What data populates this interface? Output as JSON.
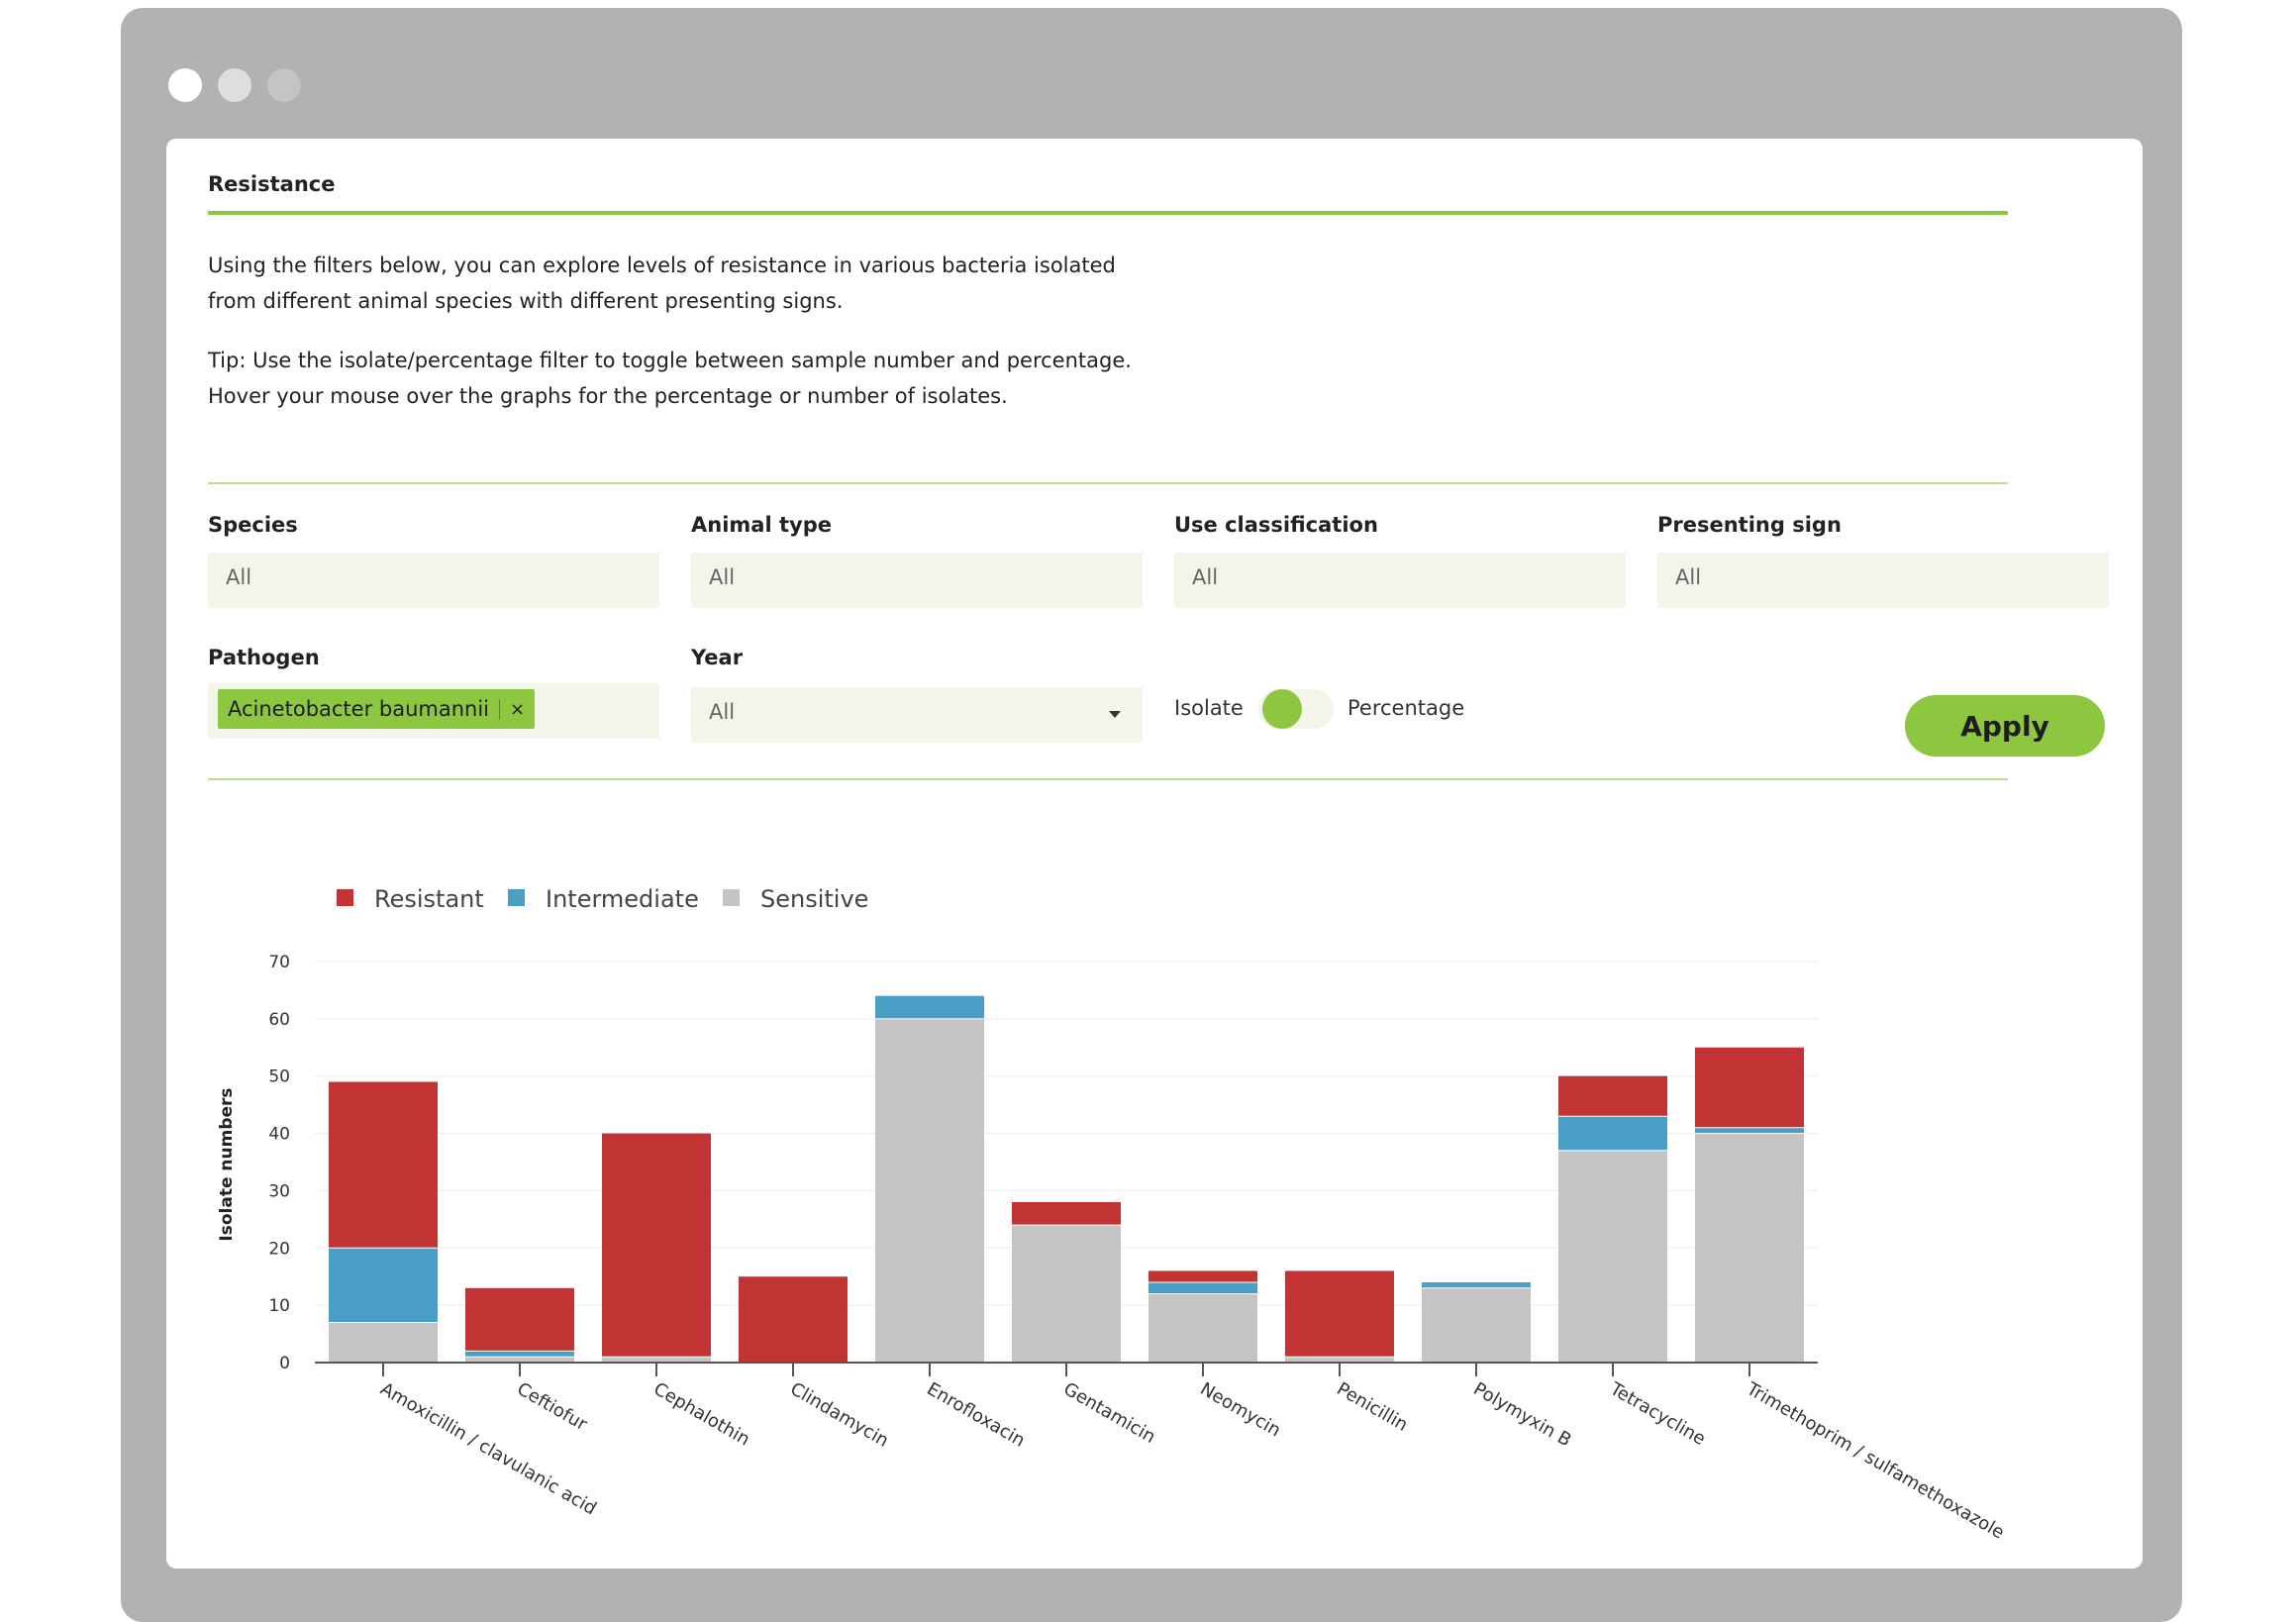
{
  "window": {
    "controls": [
      "close",
      "minimize",
      "maximize"
    ]
  },
  "header": {
    "title": "Resistance"
  },
  "intro": {
    "line1": "Using the filters below, you can explore levels of resistance in various bacteria isolated",
    "line2": "from different animal species with different presenting signs.",
    "tip1": "Tip: Use the isolate/percentage filter to toggle between sample number and percentage.",
    "tip2": "Hover your mouse over the graphs for the percentage or number of isolates."
  },
  "filters": {
    "species": {
      "label": "Species",
      "value": "All"
    },
    "animal_type": {
      "label": "Animal type",
      "value": "All"
    },
    "use_classification": {
      "label": "Use classification",
      "value": "All"
    },
    "presenting_sign": {
      "label": "Presenting sign",
      "value": "All"
    },
    "pathogen": {
      "label": "Pathogen",
      "chip": "Acinetobacter baumannii",
      "chip_remove": "×"
    },
    "year": {
      "label": "Year",
      "value": "All"
    },
    "toggle": {
      "left_label": "Isolate",
      "right_label": "Percentage",
      "selected": "Isolate"
    },
    "apply_label": "Apply"
  },
  "colors": {
    "accent": "#8dc63f",
    "resistant": "#c23434",
    "intermediate": "#4a9fc6",
    "sensitive": "#c4c4c4"
  },
  "chart_data": {
    "type": "bar",
    "stacked": true,
    "ylabel": "Isolate numbers",
    "ylim": [
      0,
      70
    ],
    "yticks": [
      0,
      10,
      20,
      30,
      40,
      50,
      60,
      70
    ],
    "grid": true,
    "legend_position": "top-left",
    "categories": [
      "Amoxicillin / clavulanic acid",
      "Ceftiofur",
      "Cephalothin",
      "Clindamycin",
      "Enrofloxacin",
      "Gentamicin",
      "Neomycin",
      "Penicillin",
      "Polymyxin B",
      "Tetracycline",
      "Trimethoprim / sulfamethoxazole"
    ],
    "series": [
      {
        "name": "Sensitive",
        "color": "#c4c4c4",
        "values": [
          7,
          1,
          1,
          0,
          60,
          24,
          12,
          1,
          13,
          37,
          40
        ]
      },
      {
        "name": "Intermediate",
        "color": "#4a9fc6",
        "values": [
          13,
          1,
          0,
          0,
          4,
          0,
          2,
          0,
          1,
          6,
          1
        ]
      },
      {
        "name": "Resistant",
        "color": "#c23434",
        "values": [
          29,
          11,
          39,
          15,
          0,
          4,
          2,
          15,
          0,
          7,
          14
        ]
      }
    ],
    "legend": [
      "Resistant",
      "Intermediate",
      "Sensitive"
    ]
  }
}
